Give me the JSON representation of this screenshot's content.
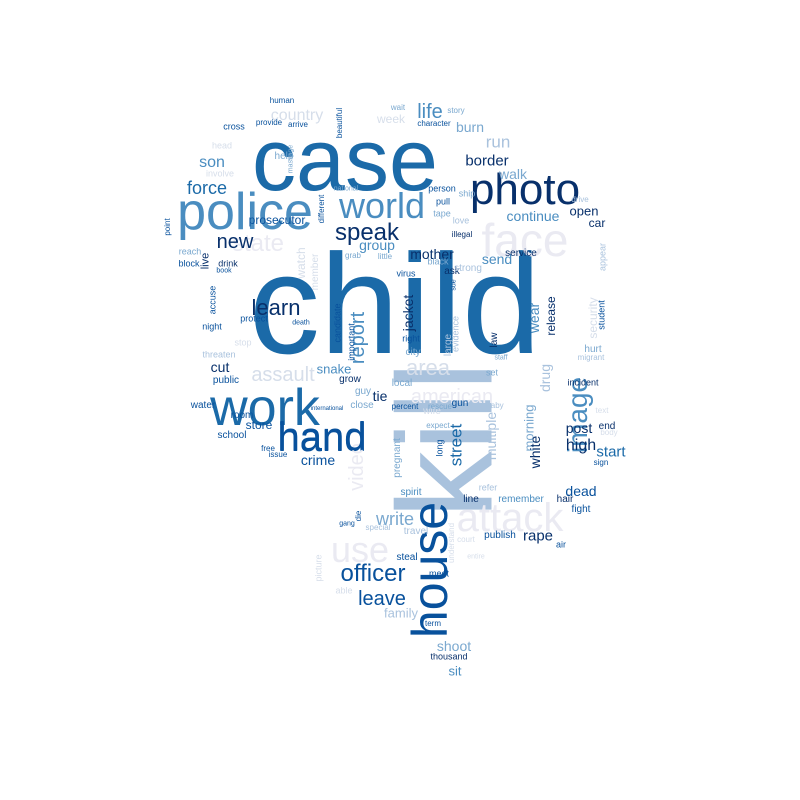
{
  "palette": {
    "c1": "#08306b",
    "c2": "#08519c",
    "c3": "#1b6aa8",
    "c4": "#4a8dc0",
    "c5": "#7aa8cf",
    "c6": "#a9c2dd",
    "c7": "#d6deea",
    "c8": "#eaeaf2"
  },
  "words": [
    {
      "text": "child",
      "color": "c3"
    },
    {
      "text": "kill",
      "color": "c6"
    },
    {
      "text": "case",
      "color": "c3"
    },
    {
      "text": "police",
      "color": "c4"
    },
    {
      "text": "photo",
      "color": "c1"
    },
    {
      "text": "house",
      "color": "c2"
    },
    {
      "text": "work",
      "color": "c3"
    },
    {
      "text": "hand",
      "color": "c2"
    },
    {
      "text": "face",
      "color": "c8"
    },
    {
      "text": "attack",
      "color": "c8"
    },
    {
      "text": "world",
      "color": "c4"
    },
    {
      "text": "use",
      "color": "c8"
    },
    {
      "text": "image",
      "color": "c4"
    },
    {
      "text": "officer",
      "color": "c2"
    },
    {
      "text": "speak",
      "color": "c1"
    },
    {
      "text": "learn",
      "color": "c1"
    },
    {
      "text": "report",
      "color": "c4"
    },
    {
      "text": "assault",
      "color": "c7"
    },
    {
      "text": "area",
      "color": "c7"
    },
    {
      "text": "state",
      "color": "c8"
    },
    {
      "text": "new",
      "color": "c1"
    },
    {
      "text": "force",
      "color": "c3"
    },
    {
      "text": "leave",
      "color": "c2"
    },
    {
      "text": "write",
      "color": "c5"
    },
    {
      "text": "life",
      "color": "c4"
    },
    {
      "text": "border",
      "color": "c1"
    },
    {
      "text": "country",
      "color": "c7"
    },
    {
      "text": "video",
      "color": "c8"
    },
    {
      "text": "american",
      "color": "c8"
    },
    {
      "text": "street",
      "color": "c3"
    },
    {
      "text": "hand",
      "color": "c2"
    },
    {
      "text": "run",
      "color": "c6"
    },
    {
      "text": "son",
      "color": "c4"
    },
    {
      "text": "burn",
      "color": "c5"
    },
    {
      "text": "continue",
      "color": "c4"
    },
    {
      "text": "walk",
      "color": "c5"
    },
    {
      "text": "open",
      "color": "c1"
    },
    {
      "text": "car",
      "color": "c1"
    },
    {
      "text": "start",
      "color": "c3"
    },
    {
      "text": "high",
      "color": "c1"
    },
    {
      "text": "dead",
      "color": "c2"
    },
    {
      "text": "post",
      "color": "c1"
    },
    {
      "text": "rape",
      "color": "c1"
    },
    {
      "text": "crime",
      "color": "c2"
    },
    {
      "text": "store",
      "color": "c2"
    },
    {
      "text": "cut",
      "color": "c1"
    },
    {
      "text": "group",
      "color": "c4"
    },
    {
      "text": "mother",
      "color": "c1"
    },
    {
      "text": "send",
      "color": "c4"
    },
    {
      "text": "family",
      "color": "c6"
    },
    {
      "text": "shoot",
      "color": "c5"
    },
    {
      "text": "sit",
      "color": "c4"
    },
    {
      "text": "jacket",
      "color": "c1"
    },
    {
      "text": "release",
      "color": "c1"
    },
    {
      "text": "wear",
      "color": "c4"
    },
    {
      "text": "drug",
      "color": "c6"
    },
    {
      "text": "security",
      "color": "c7"
    },
    {
      "text": "tie",
      "color": "c1"
    },
    {
      "text": "morning",
      "color": "c5"
    },
    {
      "text": "multiple",
      "color": "c6"
    },
    {
      "text": "white",
      "color": "c1"
    },
    {
      "text": "snake",
      "color": "c4"
    },
    {
      "text": "live",
      "color": "c1"
    },
    {
      "text": "week",
      "color": "c7"
    },
    {
      "text": "prosecutor",
      "color": "c2"
    },
    {
      "text": "publish",
      "color": "c2"
    },
    {
      "text": "travel",
      "color": "c6"
    },
    {
      "text": "steal",
      "color": "c2"
    },
    {
      "text": "meet",
      "color": "c2"
    },
    {
      "text": "thousand",
      "color": "c1"
    },
    {
      "text": "picture",
      "color": "c7"
    },
    {
      "text": "able",
      "color": "c7"
    },
    {
      "text": "end",
      "color": "c1"
    },
    {
      "text": "night",
      "color": "c2"
    },
    {
      "text": "public",
      "color": "c2"
    },
    {
      "text": "water",
      "color": "c2"
    },
    {
      "text": "school",
      "color": "c2"
    },
    {
      "text": "room",
      "color": "c2"
    },
    {
      "text": "help",
      "color": "c5"
    },
    {
      "text": "drink",
      "color": "c1"
    },
    {
      "text": "protect",
      "color": "c2"
    },
    {
      "text": "accuse",
      "color": "c2"
    },
    {
      "text": "threaten",
      "color": "c6"
    },
    {
      "text": "stop",
      "color": "c7"
    },
    {
      "text": "grow",
      "color": "c1"
    },
    {
      "text": "guy",
      "color": "c5"
    },
    {
      "text": "close",
      "color": "c5"
    },
    {
      "text": "local",
      "color": "c5"
    },
    {
      "text": "gun",
      "color": "c2"
    },
    {
      "text": "wife",
      "color": "c7"
    },
    {
      "text": "long",
      "color": "c2"
    },
    {
      "text": "pregnant",
      "color": "c5"
    },
    {
      "text": "spirit",
      "color": "c4"
    },
    {
      "text": "refer",
      "color": "c6"
    },
    {
      "text": "remember",
      "color": "c4"
    },
    {
      "text": "hair",
      "color": "c1"
    },
    {
      "text": "fight",
      "color": "c2"
    },
    {
      "text": "line",
      "color": "c1"
    },
    {
      "text": "air",
      "color": "c2"
    },
    {
      "text": "ask",
      "color": "c1"
    },
    {
      "text": "strong",
      "color": "c6"
    },
    {
      "text": "virus",
      "color": "c2"
    },
    {
      "text": "right",
      "color": "c2"
    },
    {
      "text": "city",
      "color": "c5"
    },
    {
      "text": "important",
      "color": "c2"
    },
    {
      "text": "candidate",
      "color": "c2"
    },
    {
      "text": "law",
      "color": "c1"
    },
    {
      "text": "service",
      "color": "c1"
    },
    {
      "text": "appear",
      "color": "c6"
    },
    {
      "text": "hurt",
      "color": "c5"
    },
    {
      "text": "student",
      "color": "c2"
    },
    {
      "text": "incident",
      "color": "c1"
    },
    {
      "text": "evidence",
      "color": "c6"
    },
    {
      "text": "large",
      "color": "c6"
    },
    {
      "text": "set",
      "color": "c5"
    },
    {
      "text": "black",
      "color": "c5"
    },
    {
      "text": "little",
      "color": "c5"
    },
    {
      "text": "block",
      "color": "c2"
    },
    {
      "text": "cross",
      "color": "c2"
    },
    {
      "text": "arrive",
      "color": "c2"
    },
    {
      "text": "provide",
      "color": "c2"
    },
    {
      "text": "human",
      "color": "c2"
    },
    {
      "text": "character",
      "color": "c2"
    },
    {
      "text": "story",
      "color": "c5"
    },
    {
      "text": "person",
      "color": "c2"
    },
    {
      "text": "ship",
      "color": "c5"
    },
    {
      "text": "pull",
      "color": "c2"
    },
    {
      "text": "tape",
      "color": "c5"
    },
    {
      "text": "love",
      "color": "c6"
    },
    {
      "text": "illegal",
      "color": "c1"
    },
    {
      "text": "drive",
      "color": "c6"
    },
    {
      "text": "national",
      "color": "c5"
    },
    {
      "text": "different",
      "color": "c2"
    },
    {
      "text": "reach",
      "color": "c5"
    },
    {
      "text": "book",
      "color": "c2"
    },
    {
      "text": "free",
      "color": "c2"
    },
    {
      "text": "issue",
      "color": "c2"
    },
    {
      "text": "percent",
      "color": "c2"
    },
    {
      "text": "expect",
      "color": "c5"
    },
    {
      "text": "baby",
      "color": "c6"
    },
    {
      "text": "text",
      "color": "c7"
    },
    {
      "text": "body",
      "color": "c7"
    },
    {
      "text": "sign",
      "color": "c2"
    },
    {
      "text": "gang",
      "color": "c2"
    },
    {
      "text": "die",
      "color": "c2"
    },
    {
      "text": "term",
      "color": "c2"
    },
    {
      "text": "understand",
      "color": "c7"
    },
    {
      "text": "entire",
      "color": "c7"
    },
    {
      "text": "court",
      "color": "c7"
    },
    {
      "text": "point",
      "color": "c2"
    },
    {
      "text": "head",
      "color": "c7"
    },
    {
      "text": "involve",
      "color": "c7"
    },
    {
      "text": "watch",
      "color": "c7"
    },
    {
      "text": "member",
      "color": "c7"
    },
    {
      "text": "death",
      "color": "c2"
    },
    {
      "text": "wait",
      "color": "c5"
    },
    {
      "text": "beautiful",
      "color": "c2"
    },
    {
      "text": "massage",
      "color": "c5"
    },
    {
      "text": "international",
      "color": "c2"
    },
    {
      "text": "rescue",
      "color": "c5"
    },
    {
      "text": "sue",
      "color": "c2"
    },
    {
      "text": "grab",
      "color": "c5"
    },
    {
      "text": "migrant",
      "color": "c6"
    },
    {
      "text": "staff",
      "color": "c5"
    },
    {
      "text": "special",
      "color": "c6"
    }
  ]
}
